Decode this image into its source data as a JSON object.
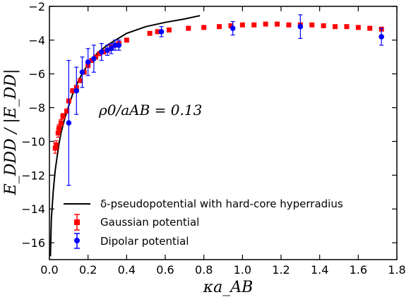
{
  "chart_data": {
    "type": "scatter",
    "xlim": [
      0.0,
      1.8
    ],
    "ylim": [
      -17,
      -2
    ],
    "xticks": [
      0.0,
      0.2,
      0.4,
      0.6,
      0.8,
      1.0,
      1.2,
      1.4,
      1.6,
      1.8
    ],
    "yticks": [
      -16,
      -14,
      -12,
      -10,
      -8,
      -6,
      -4,
      -2
    ],
    "xtick_labels": [
      "0.0",
      "0.2",
      "0.4",
      "0.6",
      "0.8",
      "1.0",
      "1.2",
      "1.4",
      "1.6",
      "1.8"
    ],
    "ytick_labels": [
      "−16",
      "−14",
      "−12",
      "−10",
      "−8",
      "−6",
      "−4",
      "−2"
    ],
    "xlabel": "κa_AB",
    "ylabel": "E_DDD / |E_DD|",
    "annotation": "ρ0/aAB = 0.13",
    "grid": false,
    "legend_position": "bottom-left",
    "series": [
      {
        "name": "δ-pseudopotential with hard-core hyperradius",
        "style": "line",
        "color": "#000000",
        "x": [
          0.005,
          0.01,
          0.02,
          0.03,
          0.04,
          0.05,
          0.06,
          0.08,
          0.1,
          0.12,
          0.15,
          0.2,
          0.25,
          0.3,
          0.4,
          0.5,
          0.6,
          0.7,
          0.78
        ],
        "y": [
          -16.8,
          -14.6,
          -12.9,
          -11.7,
          -10.9,
          -10.1,
          -9.5,
          -8.6,
          -7.9,
          -7.2,
          -6.4,
          -5.4,
          -4.75,
          -4.3,
          -3.6,
          -3.2,
          -2.95,
          -2.75,
          -2.55
        ]
      },
      {
        "name": "Gaussian potential",
        "style": "markers",
        "marker": "square",
        "color": "#ff0000",
        "x": [
          0.03,
          0.035,
          0.045,
          0.05,
          0.06,
          0.07,
          0.09,
          0.1,
          0.12,
          0.14,
          0.16,
          0.18,
          0.2,
          0.22,
          0.24,
          0.26,
          0.28,
          0.3,
          0.32,
          0.34,
          0.36,
          0.4,
          0.52,
          0.56,
          0.62,
          0.72,
          0.8,
          0.88,
          0.94,
          1.0,
          1.06,
          1.12,
          1.18,
          1.24,
          1.3,
          1.36,
          1.42,
          1.48,
          1.54,
          1.6,
          1.66,
          1.72
        ],
        "y": [
          -10.4,
          -10.2,
          -9.5,
          -9.2,
          -8.9,
          -8.5,
          -8.2,
          -7.6,
          -7.0,
          -6.8,
          -6.4,
          -5.9,
          -5.5,
          -5.2,
          -5.0,
          -4.8,
          -4.7,
          -4.6,
          -4.4,
          -4.3,
          -4.2,
          -4.0,
          -3.6,
          -3.5,
          -3.4,
          -3.3,
          -3.25,
          -3.2,
          -3.15,
          -3.1,
          -3.1,
          -3.05,
          -3.05,
          -3.1,
          -3.1,
          -3.1,
          -3.15,
          -3.2,
          -3.2,
          -3.25,
          -3.3,
          -3.35
        ],
        "yerr": [
          0.3,
          0.25,
          0.25,
          0.2,
          0.2,
          0.15,
          0.1,
          0.1,
          0.1,
          0.1,
          0.1,
          0.1,
          0.1,
          0.1,
          0.1,
          0.1,
          0.1,
          0.1,
          0.1,
          0.1,
          0.1,
          0.05,
          0.05,
          0.05,
          0.05,
          0.05,
          0.05,
          0.05,
          0.05,
          0.05,
          0.05,
          0.05,
          0.05,
          0.05,
          0.05,
          0.05,
          0.05,
          0.05,
          0.05,
          0.05,
          0.05,
          0.05
        ]
      },
      {
        "name": "Dipolar potential",
        "style": "markers",
        "marker": "circle",
        "color": "#0000ff",
        "x": [
          0.1,
          0.14,
          0.17,
          0.2,
          0.23,
          0.27,
          0.3,
          0.32,
          0.34,
          0.36,
          0.58,
          0.95,
          1.3,
          1.72
        ],
        "y": [
          -8.9,
          -7.0,
          -5.9,
          -5.3,
          -5.1,
          -4.7,
          -4.6,
          -4.5,
          -4.3,
          -4.3,
          -3.5,
          -3.3,
          -3.2,
          -3.8
        ],
        "yerr": [
          3.7,
          1.4,
          0.9,
          0.8,
          0.8,
          0.5,
          0.3,
          0.3,
          0.3,
          0.3,
          0.3,
          0.4,
          0.7,
          0.5
        ]
      }
    ]
  }
}
